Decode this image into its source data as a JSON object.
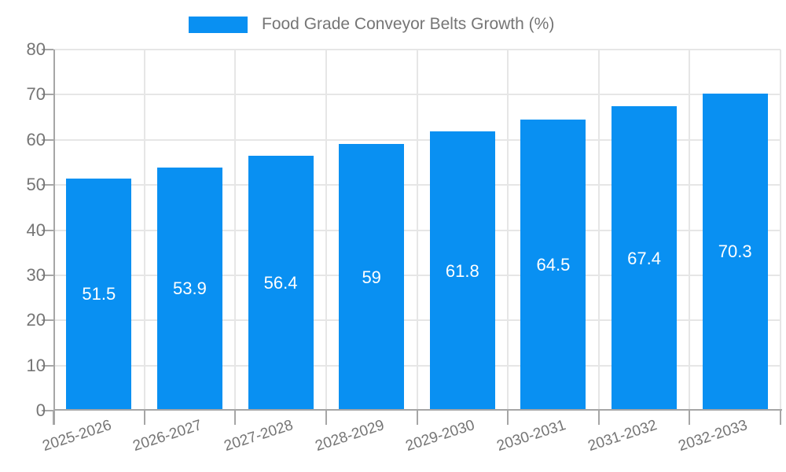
{
  "legend": {
    "label": "Food Grade Conveyor Belts Growth (%)"
  },
  "colors": {
    "bar": "#0990F2",
    "axis": "#a6a6a6",
    "grid": "#e6e6e6",
    "text": "#757575",
    "bar_label": "#ffffff",
    "background": "#ffffff"
  },
  "chart_data": {
    "type": "bar",
    "title": "Food Grade Conveyor Belts Growth (%)",
    "categories": [
      "2025-2026",
      "2026-2027",
      "2027-2028",
      "2028-2029",
      "2029-2030",
      "2030-2031",
      "2031-2032",
      "2032-2033"
    ],
    "values": [
      51.5,
      53.9,
      56.4,
      59,
      61.8,
      64.5,
      67.4,
      70.3
    ],
    "value_labels": [
      "51.5",
      "53.9",
      "56.4",
      "59",
      "61.8",
      "64.5",
      "67.4",
      "70.3"
    ],
    "xlabel": "",
    "ylabel": "",
    "ylim": [
      0,
      80
    ],
    "ytick_step": 10,
    "ytick_labels": [
      "0",
      "10",
      "20",
      "30",
      "40",
      "50",
      "60",
      "70",
      "80"
    ],
    "grid": true,
    "legend_position": "top",
    "value_label_position": "inside-middle"
  }
}
